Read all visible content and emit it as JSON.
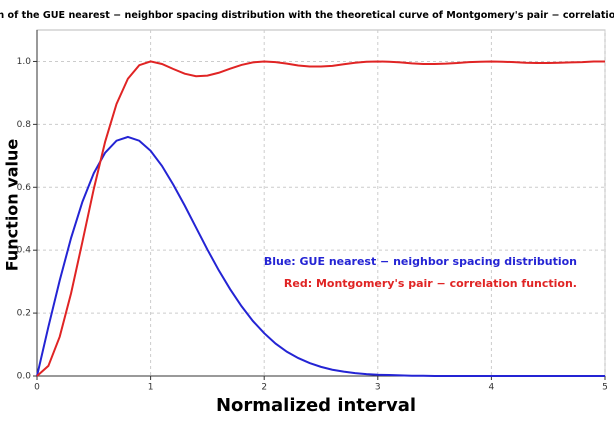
{
  "chart_data": {
    "type": "line",
    "title": "Comparison of the GUE nearest − neighbor spacing distribution with the theoretical curve of Montgomery's pair − correlation function.",
    "x_label": "Normalized interval",
    "y_label": "Function value",
    "x": [
      0,
      0.1,
      0.2,
      0.3,
      0.4,
      0.5,
      0.6,
      0.7,
      0.8,
      0.9,
      1,
      1.1,
      1.2,
      1.3,
      1.4,
      1.5,
      1.6,
      1.7,
      1.8,
      1.9,
      2,
      2.1,
      2.2,
      2.3,
      2.4,
      2.5,
      2.6,
      2.7,
      2.8,
      2.9,
      3,
      3.1,
      3.2,
      3.3,
      3.4,
      3.5,
      3.6,
      3.7,
      3.8,
      3.9,
      4,
      4.1,
      4.2,
      4.3,
      4.4,
      4.5,
      4.6,
      4.7,
      4.8,
      4.9,
      5
    ],
    "series": [
      {
        "name": "Blue: GUE nearest − neighbor spacing distribution",
        "color": "#2424d4",
        "values": [
          0,
          0.156,
          0.304,
          0.439,
          0.554,
          0.645,
          0.71,
          0.748,
          0.76,
          0.748,
          0.716,
          0.668,
          0.608,
          0.542,
          0.472,
          0.402,
          0.336,
          0.276,
          0.222,
          0.175,
          0.136,
          0.103,
          0.077,
          0.057,
          0.041,
          0.029,
          0.02,
          0.014,
          0.009,
          0.006,
          0.004,
          0.003,
          0.002,
          0.001,
          0.001,
          0,
          0,
          0,
          0,
          0,
          0,
          0,
          0,
          0,
          0,
          0,
          0,
          0,
          0,
          0,
          0
        ]
      },
      {
        "name": "Red: Montgomery's pair − correlation function.",
        "color": "#e02424",
        "values": [
          0,
          0.032,
          0.125,
          0.263,
          0.427,
          0.595,
          0.745,
          0.865,
          0.945,
          0.988,
          1.0,
          0.992,
          0.976,
          0.961,
          0.953,
          0.955,
          0.964,
          0.977,
          0.989,
          0.997,
          1.0,
          0.998,
          0.993,
          0.987,
          0.984,
          0.984,
          0.986,
          0.991,
          0.996,
          0.999,
          1.0,
          0.999,
          0.997,
          0.994,
          0.992,
          0.992,
          0.993,
          0.995,
          0.998,
          0.999,
          1.0,
          0.999,
          0.998,
          0.996,
          0.995,
          0.995,
          0.996,
          0.997,
          0.998,
          1.0,
          1.0
        ]
      }
    ],
    "xlim": [
      0,
      5
    ],
    "xticks": [
      0,
      1,
      2,
      3,
      4,
      5
    ],
    "ylim": [
      0,
      1.1
    ],
    "yticks": [
      {
        "value": 0,
        "label": "0.0"
      },
      0.2,
      0.4,
      0.6,
      0.8,
      {
        "value": 1,
        "label": "1.0"
      }
    ],
    "grid": true,
    "legend": "right"
  }
}
